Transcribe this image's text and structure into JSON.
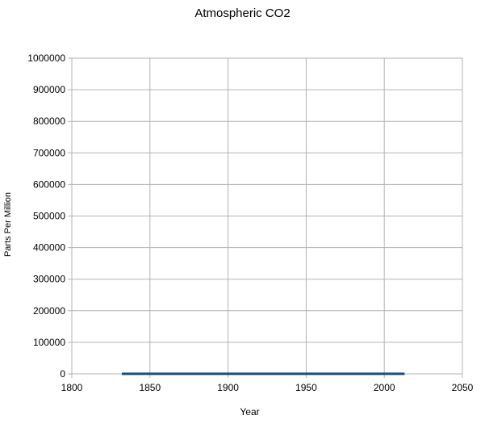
{
  "chart_data": {
    "type": "line",
    "title": "Atmospheric CO2",
    "xlabel": "Year",
    "ylabel": "Parts Per Million",
    "xlim": [
      1800,
      2050
    ],
    "ylim": [
      0,
      1000000
    ],
    "x_ticks": [
      1800,
      1850,
      1900,
      1950,
      2000,
      2050
    ],
    "y_ticks": [
      0,
      100000,
      200000,
      300000,
      400000,
      500000,
      600000,
      700000,
      800000,
      900000,
      1000000
    ],
    "grid": true,
    "legend": "none",
    "series": [
      {
        "color": "#1f4e79",
        "x": [
          1832,
          1850,
          1875,
          1900,
          1925,
          1950,
          1975,
          2000,
          2013
        ],
        "y": [
          284,
          285,
          289,
          296,
          305,
          311,
          331,
          369,
          396
        ]
      }
    ]
  }
}
